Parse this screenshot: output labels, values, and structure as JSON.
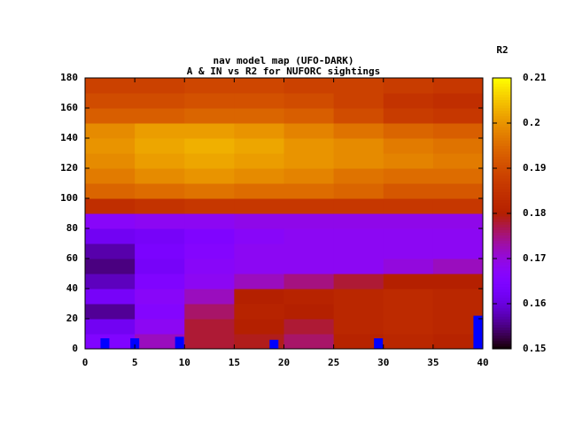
{
  "chart_data": {
    "type": "heatmap",
    "title": "nav model map (UFO-DARK)",
    "subtitle": "A & IN vs R2 for NUFORC sightings",
    "x_edges": [
      0,
      5,
      10,
      15,
      20,
      25,
      30,
      35,
      40
    ],
    "y_edges": [
      0,
      10,
      20,
      30,
      40,
      50,
      60,
      70,
      80,
      90,
      100,
      110,
      120,
      130,
      140,
      150,
      160,
      170,
      180
    ],
    "z": [
      [
        0.165,
        0.172,
        0.178,
        0.179,
        0.176,
        0.181,
        0.182,
        0.181
      ],
      [
        0.162,
        0.168,
        0.178,
        0.18,
        0.178,
        0.182,
        0.183,
        0.182
      ],
      [
        0.156,
        0.166,
        0.176,
        0.181,
        0.18,
        0.182,
        0.183,
        0.182
      ],
      [
        0.163,
        0.167,
        0.172,
        0.18,
        0.181,
        0.182,
        0.183,
        0.182
      ],
      [
        0.158,
        0.165,
        0.168,
        0.172,
        0.175,
        0.178,
        0.18,
        0.18
      ],
      [
        0.155,
        0.163,
        0.167,
        0.168,
        0.168,
        0.168,
        0.17,
        0.172
      ],
      [
        0.157,
        0.164,
        0.166,
        0.168,
        0.168,
        0.168,
        0.168,
        0.168
      ],
      [
        0.162,
        0.163,
        0.165,
        0.167,
        0.168,
        0.168,
        0.168,
        0.168
      ],
      [
        0.167,
        0.168,
        0.168,
        0.169,
        0.169,
        0.169,
        0.169,
        0.169
      ],
      [
        0.184,
        0.185,
        0.186,
        0.186,
        0.186,
        0.186,
        0.186,
        0.186
      ],
      [
        0.194,
        0.195,
        0.196,
        0.195,
        0.195,
        0.194,
        0.192,
        0.192
      ],
      [
        0.197,
        0.199,
        0.2,
        0.199,
        0.198,
        0.196,
        0.195,
        0.195
      ],
      [
        0.199,
        0.201,
        0.202,
        0.201,
        0.2,
        0.199,
        0.198,
        0.197
      ],
      [
        0.2,
        0.202,
        0.203,
        0.202,
        0.2,
        0.199,
        0.197,
        0.196
      ],
      [
        0.199,
        0.201,
        0.201,
        0.2,
        0.198,
        0.196,
        0.194,
        0.193
      ],
      [
        0.193,
        0.193,
        0.194,
        0.194,
        0.193,
        0.19,
        0.187,
        0.186
      ],
      [
        0.19,
        0.19,
        0.191,
        0.191,
        0.19,
        0.188,
        0.185,
        0.184
      ],
      [
        0.188,
        0.188,
        0.189,
        0.189,
        0.188,
        0.188,
        0.187,
        0.186
      ]
    ],
    "xlim": [
      0,
      40
    ],
    "xticks": [
      0,
      5,
      10,
      15,
      20,
      25,
      30,
      35,
      40
    ],
    "ylim": [
      0,
      180
    ],
    "yticks": [
      0,
      20,
      40,
      60,
      80,
      100,
      120,
      140,
      160,
      180
    ],
    "colorbar": {
      "label": "R2",
      "zlim": [
        0.15,
        0.21
      ],
      "ticks": [
        0.15,
        0.16,
        0.17,
        0.18,
        0.19,
        0.2,
        0.21
      ]
    },
    "overlay": {
      "x": [
        2,
        5,
        9.5,
        19,
        29.5,
        39.5
      ],
      "values": [
        7,
        7,
        8,
        6,
        7,
        22
      ],
      "color": "#0000ff"
    }
  }
}
